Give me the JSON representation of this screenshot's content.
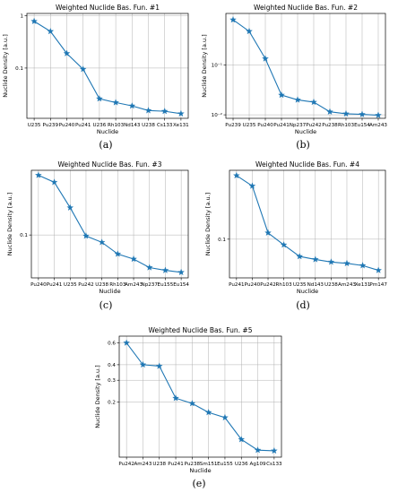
{
  "chart_data": [
    {
      "type": "line",
      "title": "Weighted Nuclide Bas. Fun. #1",
      "xlabel": "Nuclide",
      "ylabel": "Nuclide Density [a.u.]",
      "yscale": "log",
      "ylim": [
        0.011,
        1.1
      ],
      "yticks": [
        1,
        0.1
      ],
      "ytick_labels": [
        "1",
        "0.1"
      ],
      "categories": [
        "U235",
        "Pu239",
        "Pu240",
        "Pu241",
        "U236",
        "Rh103",
        "Nd143",
        "U238",
        "Cs133",
        "Xe131"
      ],
      "values": [
        0.78,
        0.5,
        0.19,
        0.095,
        0.026,
        0.022,
        0.019,
        0.0155,
        0.015,
        0.0135
      ],
      "grid": true,
      "caption": "(a)"
    },
    {
      "type": "line",
      "title": "Weighted Nuclide Bas. Fun. #2",
      "xlabel": "Nuclide",
      "ylabel": "Nuclide Density [a.u.]",
      "yscale": "log",
      "ylim": [
        0.0085,
        1.1
      ],
      "yticks": [
        0.1,
        0.01
      ],
      "ytick_labels": [
        "10⁻¹",
        "10⁻²"
      ],
      "categories": [
        "Pu239",
        "U235",
        "Pu240",
        "Pu241",
        "Np237",
        "Pu242",
        "Pu238",
        "Rh103",
        "Eu154",
        "Am243"
      ],
      "values": [
        0.82,
        0.48,
        0.135,
        0.025,
        0.02,
        0.018,
        0.0115,
        0.0105,
        0.0102,
        0.0098
      ],
      "grid": true,
      "caption": "(b)"
    },
    {
      "type": "line",
      "title": "Weighted Nuclide Bas. Fun. #3",
      "xlabel": "Nuclide",
      "ylabel": "Nuclide Density [a.u.]",
      "yscale": "log",
      "ylim": [
        0.027,
        0.72
      ],
      "yticks": [
        0.1
      ],
      "ytick_labels": [
        "0.1"
      ],
      "categories": [
        "Pu240",
        "Pu241",
        "U235",
        "Pu242",
        "U238",
        "Rh103",
        "Am243",
        "Np237",
        "Eu155",
        "Eu154"
      ],
      "values": [
        0.62,
        0.5,
        0.23,
        0.097,
        0.08,
        0.056,
        0.048,
        0.037,
        0.034,
        0.032
      ],
      "grid": true,
      "caption": "(c)"
    },
    {
      "type": "line",
      "title": "Weighted Nuclide Bas. Fun. #4",
      "xlabel": "Nuclide",
      "ylabel": "Nuclide Density [a.u.]",
      "yscale": "log",
      "ylim": [
        0.033,
        0.72
      ],
      "yticks": [
        0.1
      ],
      "ytick_labels": [
        "0.1"
      ],
      "categories": [
        "Pu241",
        "Pu240",
        "Pu242",
        "Rh103",
        "U235",
        "Nd143",
        "U238",
        "Am243",
        "Xe131",
        "Pm147"
      ],
      "values": [
        0.62,
        0.46,
        0.12,
        0.085,
        0.061,
        0.056,
        0.052,
        0.05,
        0.047,
        0.041
      ],
      "grid": true,
      "caption": "(d)"
    },
    {
      "type": "line",
      "title": "Weighted Nuclide Bas. Fun. #5",
      "xlabel": "Nuclide",
      "ylabel": "Nuclide Density [a.u.]",
      "yscale": "log",
      "ylim": [
        0.072,
        0.68
      ],
      "yticks": [
        0.6,
        0.4,
        0.3,
        0.2
      ],
      "ytick_labels": [
        "0.6",
        "0.4",
        "0.3",
        "0.2"
      ],
      "categories": [
        "Pu242",
        "Am243",
        "U238",
        "Pu241",
        "Pu238",
        "Sm151",
        "Eu155",
        "U236",
        "Ag109",
        "Cs133"
      ],
      "values": [
        0.6,
        0.4,
        0.39,
        0.215,
        0.195,
        0.165,
        0.15,
        0.1,
        0.082,
        0.081
      ],
      "grid": true,
      "caption": "(e)"
    }
  ]
}
